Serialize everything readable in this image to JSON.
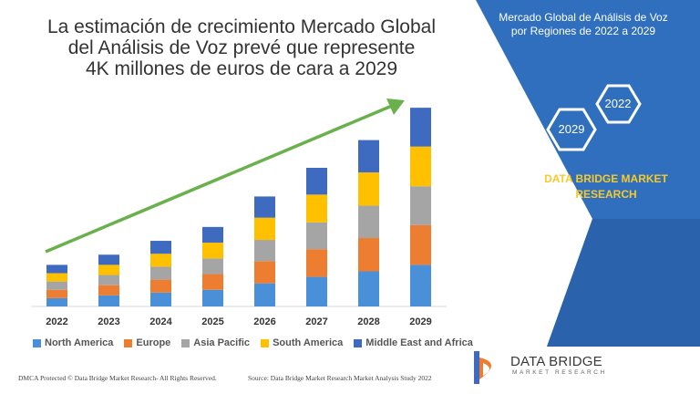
{
  "title": "La estimación de crecimiento Mercado Global del Análisis de Voz prevé que represente 4K millones de euros de cara a 2029",
  "title_lines": [
    "La estimación de crecimiento Mercado Global",
    "del Análisis de Voz prevé que represente",
    "4K millones de euros de cara a 2029"
  ],
  "side_title_lines": [
    "Mercado Global de Análisis de Voz",
    "por Regiones de 2022 a 2029"
  ],
  "hex_labels": {
    "top": "2022",
    "bottom": "2029"
  },
  "brand_lines": [
    "DATA BRIDGE MARKET",
    "RESEARCH"
  ],
  "footer_left": "DMCA Protected © Data Bridge Market Research- All Rights Reserved.",
  "footer_right": "Source: Data Bridge Market Research Market Analysis Study 2022",
  "logo": {
    "name": "DATA BRIDGE",
    "sub": "MARKET RESEARCH"
  },
  "colors": {
    "north_america": "#4a90d9",
    "europe": "#ed7d31",
    "asia_pacific": "#a5a5a5",
    "south_america": "#ffc000",
    "middle_east_africa": "#3e6bbf",
    "arrow": "#6ab04c",
    "panel": "#2f6fbd"
  },
  "chart_data": {
    "type": "bar",
    "stacked": true,
    "categories": [
      "2022",
      "2023",
      "2024",
      "2025",
      "2026",
      "2027",
      "2028",
      "2029"
    ],
    "series": [
      {
        "name": "North America",
        "color": "#4a90d9",
        "values": [
          9,
          12,
          15,
          18,
          25,
          32,
          38,
          45
        ]
      },
      {
        "name": "Europe",
        "color": "#ed7d31",
        "values": [
          9,
          11,
          14,
          17,
          24,
          30,
          36,
          43
        ]
      },
      {
        "name": "Asia Pacific",
        "color": "#a5a5a5",
        "values": [
          9,
          11,
          14,
          17,
          23,
          29,
          35,
          42
        ]
      },
      {
        "name": "South America",
        "color": "#ffc000",
        "values": [
          9,
          11,
          14,
          17,
          24,
          30,
          36,
          43
        ]
      },
      {
        "name": "Middle East and Africa",
        "color": "#3e6bbf",
        "values": [
          9,
          11,
          14,
          17,
          23,
          29,
          35,
          42
        ]
      }
    ],
    "ylim": [
      0,
      225
    ],
    "legend_position": "bottom",
    "grid": false,
    "trend_arrow": true
  }
}
